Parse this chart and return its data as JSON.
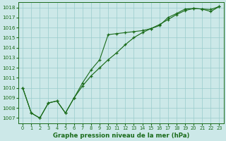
{
  "title": "Graphe pression niveau de la mer (hPa)",
  "xlabel_ticks": [
    0,
    1,
    2,
    3,
    4,
    5,
    6,
    7,
    8,
    9,
    10,
    11,
    12,
    13,
    14,
    15,
    16,
    17,
    18,
    19,
    20,
    21,
    22,
    23
  ],
  "ylim": [
    1006.5,
    1018.5
  ],
  "yticks": [
    1007,
    1008,
    1009,
    1010,
    1011,
    1012,
    1013,
    1014,
    1015,
    1016,
    1017,
    1018
  ],
  "bg_color": "#cce8e8",
  "grid_color": "#99cccc",
  "line_color": "#1a6b1a",
  "series1": [
    1010.0,
    1007.5,
    1007.0,
    1008.5,
    1008.7,
    1007.5,
    1009.0,
    1010.5,
    1011.8,
    1012.8,
    1015.3,
    1015.4,
    1015.5,
    1015.6,
    1015.7,
    1015.9,
    1016.2,
    1017.0,
    1017.4,
    1017.85,
    1017.9,
    1017.85,
    1017.8,
    1018.1
  ],
  "series2": [
    1010.0,
    1007.5,
    1007.0,
    1008.5,
    1008.7,
    1007.5,
    1009.0,
    1010.2,
    1011.2,
    1012.0,
    1012.8,
    1013.5,
    1014.3,
    1015.0,
    1015.5,
    1015.9,
    1016.3,
    1016.8,
    1017.3,
    1017.7,
    1017.9,
    1017.85,
    1017.6,
    1018.1
  ],
  "series3": [
    1010.0,
    1007.5,
    1007.0,
    1008.5,
    1008.7,
    1007.5,
    1009.0,
    1010.2,
    1011.2,
    1012.0,
    1012.8,
    1013.5,
    1014.3,
    1015.0,
    1015.5,
    1015.9,
    1016.3,
    1016.8,
    1017.3,
    1017.7,
    1017.9,
    1017.85,
    1017.6,
    1018.1
  ]
}
